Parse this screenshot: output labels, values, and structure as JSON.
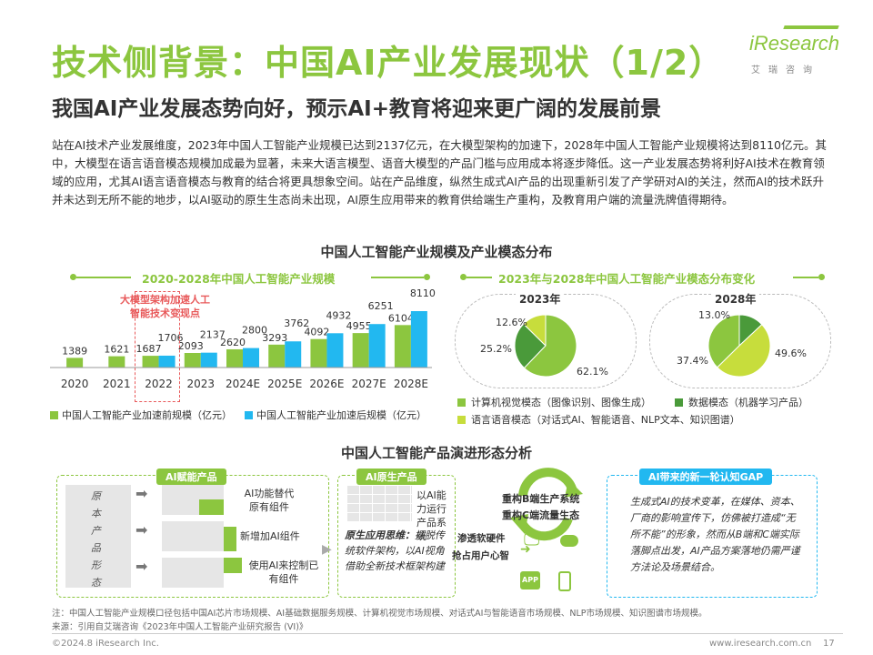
{
  "header": {
    "main_title": "技术侧背景：中国AI产业发展现状（1/2）",
    "sub_title": "我国AI产业发展态势向好，预示AI+教育将迎来更广阔的发展前景",
    "logo_text": "iResearch",
    "logo_sub": "艾瑞咨询",
    "logo_color": "#8cc63f"
  },
  "intro": "站在AI技术产业发展维度，2023年中国人工智能产业规模已达到2137亿元，在大模型架构的加速下，2028年中国人工智能产业规模将达到8110亿元。其中，大模型在语言语音模态规模加成最为显著，未来大语言模型、语音大模型的产品门槛与应用成本将逐步降低。这一产业发展态势将利好AI技术在教育领域的应用，尤其AI语言语音模态与教育的结合将更具想象空间。站在产品维度，纵然生成式AI产品的出现重新引发了产学研对AI的关注，然而AI的技术跃升并未达到无所不能的地步，以AI驱动的原生生态尚未出现，AI原生应用带来的教育供给端生产重构，及教育用户端的流量洗牌值得期待。",
  "section1_title": "中国人工智能产业规模及产业模态分布",
  "bar_chart_subtitle": "2020-2028年中国人工智能产业规模",
  "pie_section_subtitle": "2023年与2028年中国人工智能产业模态分布变化",
  "annotation": {
    "line1": "大模型架构加速人工",
    "line2": "智能技术变现点",
    "color": "#e8595a"
  },
  "chart_data": [
    {
      "type": "bar",
      "title": "2020-2028年中国人工智能产业规模",
      "categories": [
        "2020",
        "2021",
        "2022",
        "2023",
        "2024E",
        "2025E",
        "2026E",
        "2027E",
        "2028E"
      ],
      "series": [
        {
          "name": "中国人工智能产业加速前规模（亿元）",
          "color": "#8cc63f",
          "values": [
            1389,
            1621,
            1687,
            2093,
            2620,
            3293,
            4092,
            4955,
            6104
          ]
        },
        {
          "name": "中国人工智能产业加速后规模（亿元）",
          "color": "#22b8f0",
          "values": [
            null,
            null,
            1706,
            2137,
            2800,
            3762,
            4932,
            6251,
            8110
          ]
        }
      ],
      "ylim": [
        0,
        8110
      ]
    },
    {
      "type": "pie",
      "title": "2023年",
      "labels": [
        "计算机视觉模态（图像识别、图像生成）",
        "数据模态（机器学习产品）",
        "语言语音模态（对话式AI、智能语音、NLP文本、知识图谱）"
      ],
      "values": [
        62.1,
        25.2,
        12.6
      ],
      "value_labels": [
        "62.1%",
        "25.2%",
        "12.6%"
      ],
      "colors": [
        "#8cc63f",
        "#4a9a3a",
        "#c7dd3c"
      ]
    },
    {
      "type": "pie",
      "title": "2028年",
      "labels": [
        "计算机视觉模态（图像识别、图像生成）",
        "数据模态（机器学习产品）",
        "语言语音模态（对话式AI、智能语音、NLP文本、知识图谱）"
      ],
      "values": [
        37.4,
        13.0,
        49.6
      ],
      "value_labels": [
        "37.4%",
        "13.0%",
        "49.6%"
      ],
      "colors": [
        "#8cc63f",
        "#4a9a3a",
        "#c7dd3c"
      ]
    }
  ],
  "pie_legend": [
    {
      "label": "计算机视觉模态（图像识别、图像生成）",
      "color": "#8cc63f"
    },
    {
      "label": "数据模态（机器学习产品）",
      "color": "#4a9a3a"
    },
    {
      "label": "语言语音模态（对话式AI、智能语音、NLP文本、知识图谱）",
      "color": "#c7dd3c"
    }
  ],
  "section2_title": "中国人工智能产品演进形态分析",
  "box1": {
    "label": "AI赋能产品",
    "side_label": "原本产品形态",
    "rows": [
      "AI功能替代原有组件",
      "新增加AI组件",
      "使用AI来控制已有组件"
    ]
  },
  "box2": {
    "label": "AI原生产品",
    "top_text": "以AI能力运行产品系统",
    "thinking_title": "原生应用思维：",
    "thinking_text": "摆脱传统软件架构，以AI视角借助全新技术框架构建"
  },
  "center_flow": {
    "text1": "重构B端生产系统",
    "text2": "重构C端流量生态",
    "text3": "渗透软硬件",
    "text4": "抢占用户心智",
    "app_text": "APP"
  },
  "box3": {
    "label": "AI带来的新一轮认知GAP",
    "text": "生成式AI的技术变革，在媒体、资本、厂商的影响宣传下，仿佛被打造成“无所不能”的形象，然而从B端和C端实际落脚点出发，AI产品方案落地仍需严谨方法论及场景结合。"
  },
  "notes": {
    "note": "注：中国人工智能产业规模口径包括中国AI芯片市场规模、AI基础数据服务规模、计算机视觉市场规模、对话式AI与智能语音市场规模、NLP市场规模、知识图谱市场规模。",
    "source": "来源：引用自艾瑞咨询《2023年中国人工智能产业研究报告 (VI)》"
  },
  "footer": {
    "left": "©2024.8 iResearch Inc.",
    "right": "www.iresearch.com.cn",
    "page": "17"
  }
}
